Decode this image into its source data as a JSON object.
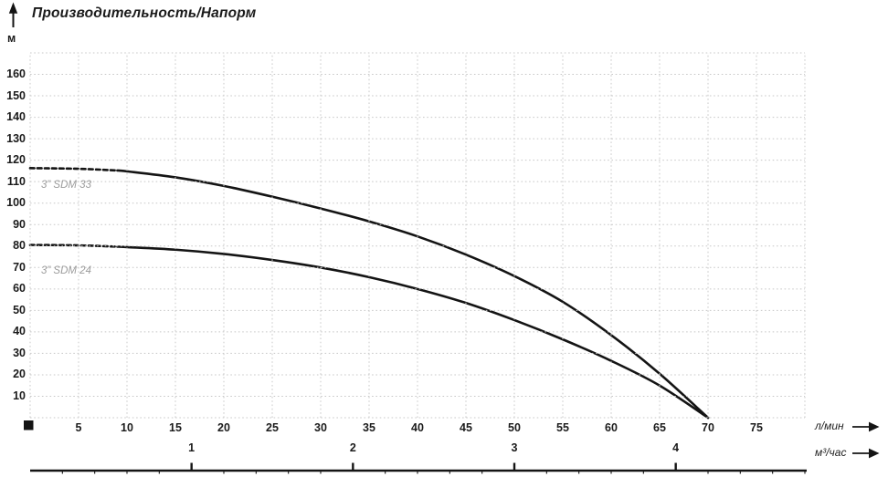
{
  "title": "Производительность/Напорм",
  "y_axis": {
    "unit": "м",
    "labeled_ticks": [
      160,
      150,
      140,
      130,
      120,
      110,
      100,
      90,
      80,
      70,
      60,
      50,
      40,
      30,
      20,
      10
    ]
  },
  "x_axis_lmin": {
    "unit": "л/мин",
    "labeled_ticks": [
      5,
      10,
      15,
      20,
      25,
      30,
      35,
      40,
      45,
      50,
      55,
      60,
      65,
      70,
      75
    ]
  },
  "x_axis_m3h": {
    "unit": "м³/час",
    "labeled_ticks": [
      1,
      2,
      3,
      4
    ],
    "lmin_per_unit": 16.6667,
    "minor_tick_step": 0.2
  },
  "chart_data": {
    "type": "line",
    "title": "Производительность/Напорм",
    "ylabel": "м",
    "xlabel_primary": "л/мин",
    "xlabel_secondary": "м³/час",
    "xlim": [
      0,
      80
    ],
    "ylim": [
      0,
      170
    ],
    "grid_x_step": 5,
    "grid_y_step": 10,
    "grid": "dotted",
    "legend_position": "inline-labels",
    "series": [
      {
        "name": "3” SDM 33",
        "dashed_until_x": 9,
        "points": [
          [
            0,
            116.3
          ],
          [
            5,
            116
          ],
          [
            9,
            115.2
          ],
          [
            10,
            114.8
          ],
          [
            15,
            112
          ],
          [
            20,
            108
          ],
          [
            25,
            103
          ],
          [
            30,
            97.5
          ],
          [
            35,
            91.5
          ],
          [
            40,
            84.5
          ],
          [
            45,
            76
          ],
          [
            50,
            66
          ],
          [
            55,
            54
          ],
          [
            60,
            38.5
          ],
          [
            65,
            20.5
          ],
          [
            70,
            0
          ]
        ]
      },
      {
        "name": "3” SDM 24",
        "dashed_until_x": 9,
        "points": [
          [
            0,
            80.5
          ],
          [
            5,
            80.3
          ],
          [
            9,
            79.7
          ],
          [
            10,
            79.5
          ],
          [
            15,
            78.3
          ],
          [
            20,
            76.3
          ],
          [
            25,
            73.5
          ],
          [
            30,
            70
          ],
          [
            35,
            65.5
          ],
          [
            40,
            60
          ],
          [
            45,
            53.5
          ],
          [
            50,
            45.5
          ],
          [
            55,
            36.5
          ],
          [
            60,
            26.5
          ],
          [
            65,
            15
          ],
          [
            70,
            0
          ]
        ]
      }
    ]
  },
  "colors": {
    "background": "#ffffff",
    "curve": "#141414",
    "grid": "#c8c8c8",
    "text": "#1b1b1b",
    "series_label": "#9c9c9c"
  }
}
